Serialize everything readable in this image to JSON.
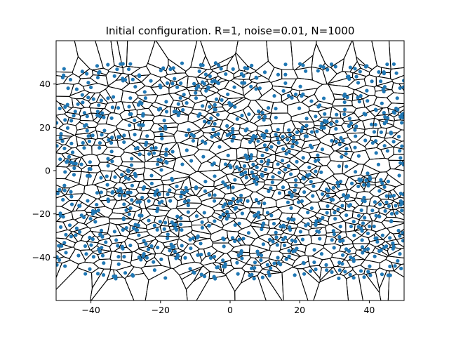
{
  "chart_data": {
    "type": "scatter",
    "title": "Initial configuration. R=1, noise=0.01, N=1000",
    "xlabel": "",
    "ylabel": "",
    "xlim": [
      -50,
      50
    ],
    "ylim": [
      -60,
      60
    ],
    "x_ticks": [
      -40,
      -20,
      0,
      20,
      40
    ],
    "y_ticks": [
      -40,
      -20,
      0,
      20,
      40
    ],
    "x_tick_labels": [
      "−40",
      "−20",
      "0",
      "20",
      "40"
    ],
    "y_tick_labels": [
      "−40",
      "−20",
      "0",
      "20",
      "40"
    ],
    "overlay": "voronoi tessellation of the points (black edges, dashed edges to infinity)",
    "grid": false,
    "legend": "none",
    "series": [
      {
        "point_count": 1000,
        "x_range": [
          -50,
          50
        ],
        "y_range": [
          -50,
          50
        ],
        "distribution": "random uniform",
        "marker": "circle",
        "color": "#1f77b4"
      }
    ],
    "edge_color": "#000000"
  }
}
